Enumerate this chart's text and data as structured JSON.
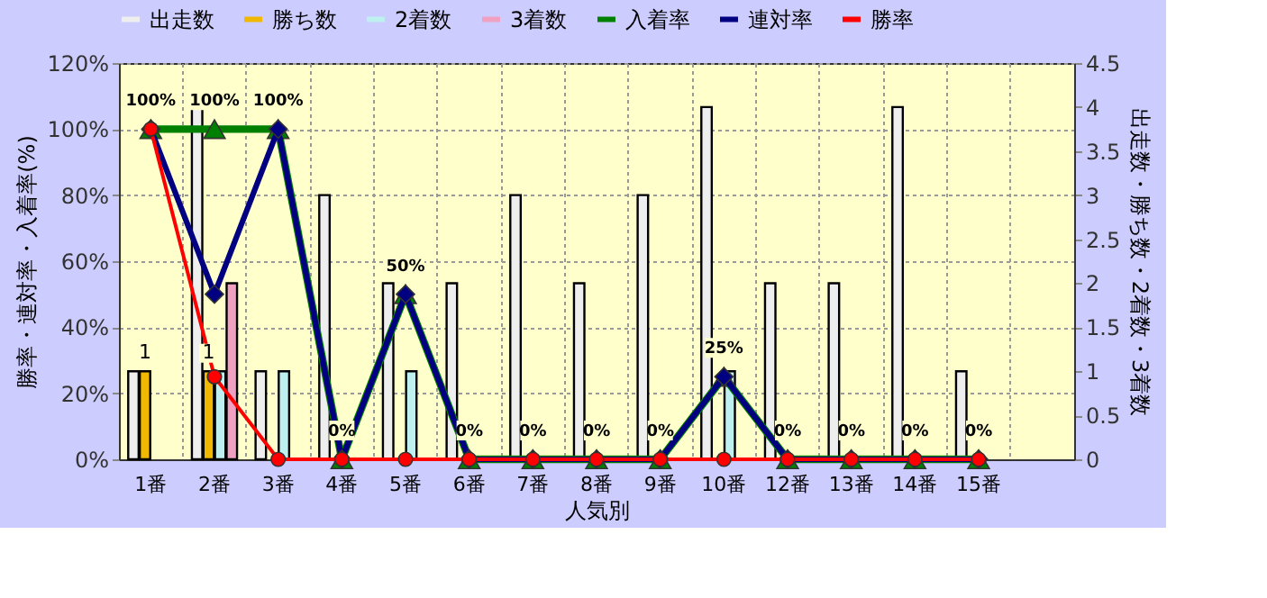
{
  "chart_data": {
    "type": "bar",
    "categories": [
      "1番",
      "2番",
      "3番",
      "4番",
      "5番",
      "6番",
      "7番",
      "8番",
      "9番",
      "10番",
      "12番",
      "13番",
      "14番",
      "15番",
      null
    ],
    "series": [
      {
        "name": "出走数",
        "axis": "y2",
        "color": "#eeeeee",
        "values": [
          1,
          4,
          1,
          3,
          2,
          2,
          3,
          2,
          3,
          4,
          2,
          2,
          4,
          1,
          null
        ]
      },
      {
        "name": "勝ち数",
        "axis": "y2",
        "color": "#f0b800",
        "values": [
          1,
          1,
          null,
          null,
          null,
          null,
          null,
          null,
          null,
          null,
          null,
          null,
          null,
          null,
          null
        ],
        "value_labels": [
          "1",
          "1",
          null,
          null,
          null,
          null,
          null,
          null,
          null,
          null,
          null,
          null,
          null,
          null,
          null
        ]
      },
      {
        "name": "2着数",
        "axis": "y2",
        "color": "#bff0f0",
        "values": [
          null,
          1,
          1,
          null,
          1,
          null,
          null,
          null,
          null,
          1,
          null,
          null,
          null,
          null,
          null
        ]
      },
      {
        "name": "3着数",
        "axis": "y2",
        "color": "#f0a0c0",
        "values": [
          null,
          2,
          null,
          null,
          null,
          null,
          null,
          null,
          null,
          null,
          null,
          null,
          null,
          null,
          null
        ]
      },
      {
        "name": "入着率",
        "type": "line",
        "axis": "y",
        "color": "#008000",
        "marker": "triangle",
        "values": [
          100,
          100,
          100,
          0,
          50,
          0,
          0,
          0,
          0,
          25,
          0,
          0,
          0,
          0,
          null
        ],
        "value_labels": [
          "100%",
          "100%",
          "100%",
          "0%",
          "50%",
          "0%",
          "0%",
          "0%",
          "0%",
          "25%",
          "0%",
          "0%",
          "0%",
          "0%",
          null
        ]
      },
      {
        "name": "連対率",
        "type": "line",
        "axis": "y",
        "color": "#000080",
        "marker": "diamond",
        "values": [
          100,
          50,
          100,
          0,
          50,
          0,
          0,
          0,
          0,
          25,
          0,
          0,
          0,
          0,
          null
        ]
      },
      {
        "name": "勝率",
        "type": "line",
        "axis": "y",
        "color": "#ff0000",
        "marker": "circle",
        "values": [
          100,
          25,
          0,
          0,
          0,
          0,
          0,
          0,
          0,
          0,
          0,
          0,
          0,
          0,
          null
        ]
      }
    ],
    "xlabel": "人気別",
    "ylabel": "勝率・連対率・入着率(%)",
    "y2label": "出走数・勝ち数・2着数・3着数",
    "ylim": [
      0,
      120
    ],
    "yticks": [
      {
        "value": 0,
        "label": "0%"
      },
      {
        "value": 20,
        "label": "20%"
      },
      {
        "value": 40,
        "label": "40%"
      },
      {
        "value": 60,
        "label": "60%"
      },
      {
        "value": 80,
        "label": "80%"
      },
      {
        "value": 100,
        "label": "100%"
      },
      {
        "value": 120,
        "label": "120%"
      }
    ],
    "y2lim": [
      0,
      4.5
    ],
    "y2ticks": [
      0,
      0.5,
      1,
      1.5,
      2,
      2.5,
      3,
      3.5,
      4,
      4.5
    ],
    "grid": true,
    "legend": "top"
  }
}
